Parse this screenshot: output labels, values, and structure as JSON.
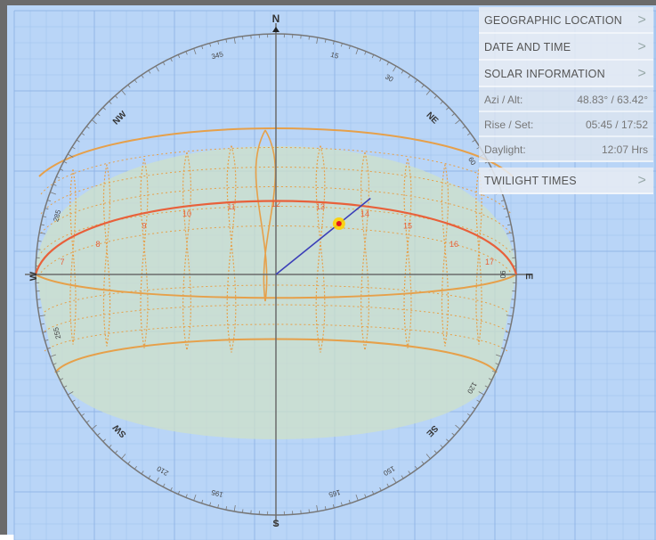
{
  "compass": {
    "north": "N",
    "south": "S",
    "east": "E",
    "west": "W",
    "northeast": "NE",
    "northwest": "NW",
    "southeast": "SE",
    "southwest": "SW",
    "bearing_labels": [
      "345",
      "15",
      "30",
      "60",
      "90",
      "285",
      "255",
      "210",
      "195",
      "165",
      "150",
      "120"
    ]
  },
  "hour_labels": [
    "7",
    "8",
    "9",
    "10",
    "11",
    "12",
    "13",
    "14",
    "15",
    "16",
    "17"
  ],
  "panel": {
    "geographic_location": "GEOGRAPHIC LOCATION",
    "date_and_time": "DATE AND TIME",
    "solar_information": "SOLAR INFORMATION",
    "azi_alt_label": "Azi / Alt:",
    "azi_alt_value": "48.83° / 63.42°",
    "rise_set_label": "Rise / Set:",
    "rise_set_value": "05:45 / 17:52",
    "daylight_label": "Daylight:",
    "daylight_value": "12:07 Hrs",
    "twilight_times": "TWILIGHT TIMES",
    "chevron": ">"
  },
  "sun_position": {
    "azimuth_deg": 48.83,
    "altitude_deg": 63.42
  },
  "colors": {
    "background": "#b9d5f7",
    "grid": "#8fb3e6",
    "band_fill": "#cfe0c8",
    "band_stroke": "#e6a04a",
    "sun_path": "#e8603a",
    "sun_marker": "#ffd100",
    "sun_line": "#3b3fb8",
    "ring": "#777777"
  }
}
